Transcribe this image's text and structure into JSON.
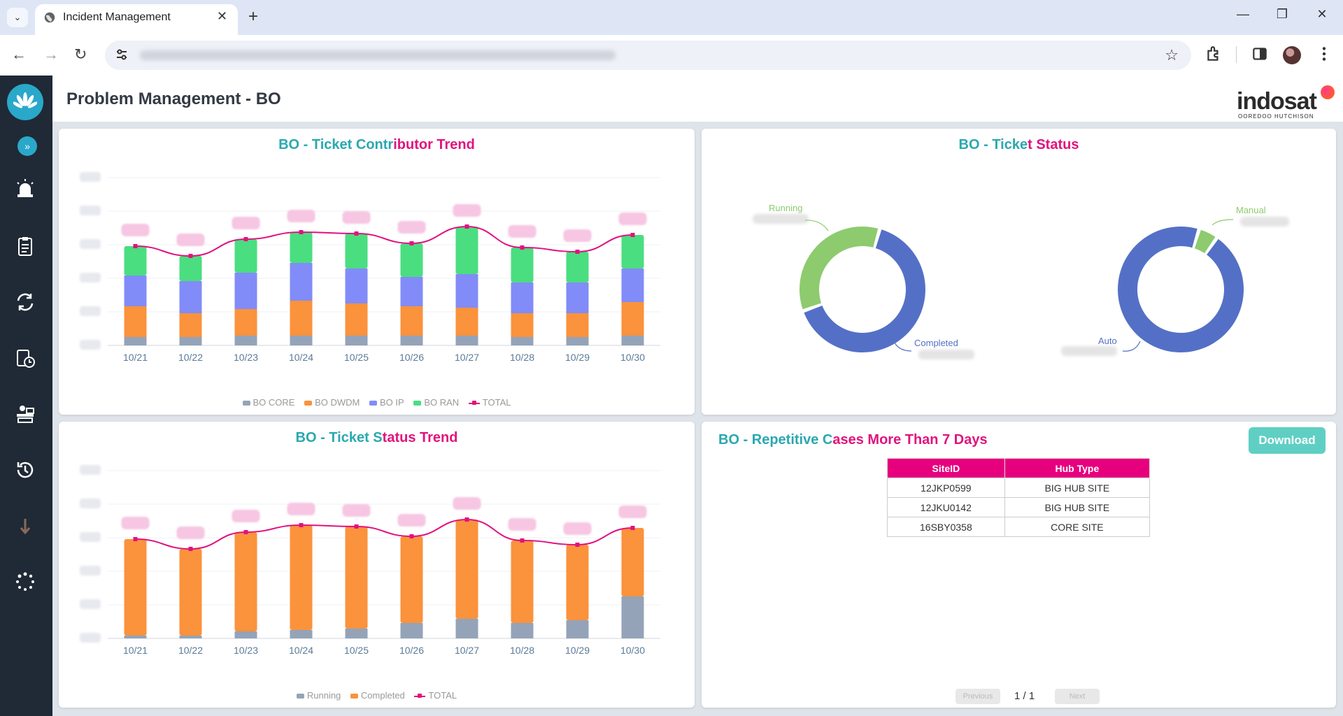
{
  "browser": {
    "tab_title": "Incident Management",
    "tab_close": "✕",
    "new_tab": "+",
    "tab_menu": "⌄",
    "minimize": "—",
    "restore": "❐",
    "close": "✕",
    "back": "←",
    "forward": "→",
    "reload": "↻",
    "star": "☆"
  },
  "sidebar": {
    "expand": "»",
    "items": [
      "alarm-icon",
      "clipboard-icon",
      "sync-icon",
      "report-clock-icon",
      "workstation-icon",
      "history-icon",
      "download-icon",
      "loading-icon"
    ]
  },
  "header": {
    "title": "Problem Management - BO",
    "brand_name": "indosat",
    "brand_sub": "OOREDOO HUTCHISON"
  },
  "colors": {
    "core": "#94a3b8",
    "dwdm": "#fb923c",
    "ip": "#818cf8",
    "ran": "#4ade80",
    "total": "#e1127f",
    "running_donut": "#8dcb6e",
    "completed_donut": "#5470c6",
    "accent_teal": "#2aa8b0",
    "accent_pink": "#e1127f"
  },
  "panels": {
    "contributor": {
      "title_a": "BO - Ticket Contributor Trend",
      "legend": [
        "BO CORE",
        "BO DWDM",
        "BO IP",
        "BO RAN",
        "TOTAL"
      ]
    },
    "status": {
      "title": "BO - Ticket Status",
      "labels": {
        "running": "Running",
        "completed": "Completed",
        "manual": "Manual",
        "auto": "Auto"
      }
    },
    "status_trend": {
      "title": "BO - Ticket Status Trend",
      "legend": [
        "Running",
        "Completed",
        "TOTAL"
      ]
    },
    "repetitive": {
      "title": "BO - Repetitive Cases More Than 7 Days",
      "download": "Download",
      "columns": [
        "SiteID",
        "Hub Type"
      ],
      "rows": [
        [
          "12JKP0599",
          "BIG HUB SITE"
        ],
        [
          "12JKU0142",
          "BIG HUB SITE"
        ],
        [
          "16SBY0358",
          "CORE SITE"
        ]
      ],
      "prev": "Previous",
      "next": "Next",
      "page": "1 / 1"
    }
  },
  "chart_data": [
    {
      "type": "bar",
      "title": "BO - Ticket Contributor Trend",
      "categories": [
        "10/21",
        "10/22",
        "10/23",
        "10/24",
        "10/25",
        "10/26",
        "10/27",
        "10/28",
        "10/29",
        "10/30"
      ],
      "ylim": [
        0,
        6
      ],
      "series": [
        {
          "name": "BO CORE",
          "values": [
            0.3,
            0.3,
            0.35,
            0.35,
            0.35,
            0.35,
            0.35,
            0.3,
            0.3,
            0.35
          ]
        },
        {
          "name": "BO DWDM",
          "values": [
            1.1,
            0.85,
            0.95,
            1.25,
            1.15,
            1.05,
            1.0,
            0.85,
            0.85,
            1.2
          ]
        },
        {
          "name": "BO IP",
          "values": [
            1.1,
            1.15,
            1.3,
            1.35,
            1.25,
            1.05,
            1.2,
            1.1,
            1.1,
            1.2
          ]
        },
        {
          "name": "BO RAN",
          "values": [
            1.05,
            0.9,
            1.2,
            1.1,
            1.25,
            1.2,
            1.7,
            1.25,
            1.1,
            1.2
          ]
        },
        {
          "name": "TOTAL",
          "values": [
            3.55,
            3.2,
            3.8,
            4.05,
            4.0,
            3.65,
            4.25,
            3.5,
            3.35,
            3.95
          ]
        }
      ]
    },
    {
      "type": "pie",
      "title": "BO - Ticket Status",
      "slices": [
        {
          "name": "Running",
          "value": 35
        },
        {
          "name": "Completed",
          "value": 65
        }
      ]
    },
    {
      "type": "pie",
      "title": "BO - Ticket Status",
      "slices": [
        {
          "name": "Manual",
          "value": 5
        },
        {
          "name": "Auto",
          "value": 95
        }
      ]
    },
    {
      "type": "bar",
      "title": "BO - Ticket Status Trend",
      "categories": [
        "10/21",
        "10/22",
        "10/23",
        "10/24",
        "10/25",
        "10/26",
        "10/27",
        "10/28",
        "10/29",
        "10/30"
      ],
      "ylim": [
        0,
        6
      ],
      "series": [
        {
          "name": "Running",
          "values": [
            0.1,
            0.1,
            0.25,
            0.3,
            0.35,
            0.55,
            0.7,
            0.55,
            0.65,
            1.5
          ]
        },
        {
          "name": "Completed",
          "values": [
            3.45,
            3.1,
            3.55,
            3.75,
            3.65,
            3.1,
            3.55,
            2.95,
            2.7,
            2.45
          ]
        },
        {
          "name": "TOTAL",
          "values": [
            3.55,
            3.2,
            3.8,
            4.05,
            4.0,
            3.65,
            4.25,
            3.5,
            3.35,
            3.95
          ]
        }
      ]
    }
  ]
}
